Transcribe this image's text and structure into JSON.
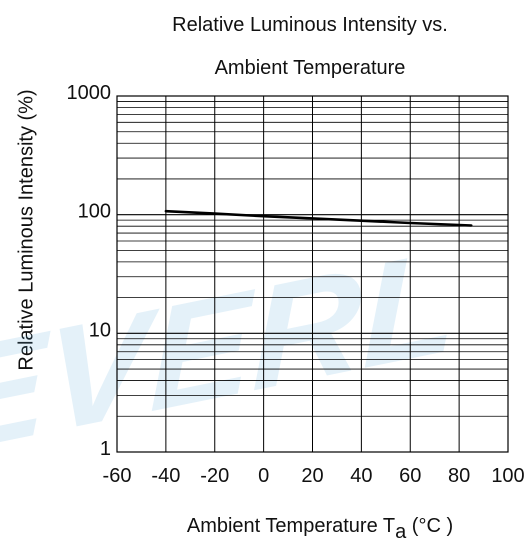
{
  "chart_data": {
    "type": "line",
    "title": "Relative Luminous Intensity vs.",
    "subtitle": "Ambient Temperature",
    "xlabel": "Ambient Temperature T",
    "xlabel_subscript": "a",
    "xlabel_unit": " (°C )",
    "ylabel": "Relative Luminous Intensity  (%)",
    "xlim": [
      -60,
      100
    ],
    "ylim": [
      1,
      1000
    ],
    "yscale": "log",
    "grid": true,
    "x_ticks": [
      "-60",
      "-40",
      "-20",
      "0",
      "20",
      "40",
      "60",
      "80",
      "100"
    ],
    "y_ticks": [
      "1",
      "10",
      "100",
      "1000"
    ],
    "series": [
      {
        "x": [
          -40,
          -20,
          0,
          20,
          40,
          60,
          85
        ],
        "y": [
          107,
          102,
          97,
          93,
          89,
          85,
          81
        ]
      }
    ]
  },
  "watermark": {
    "text": "EVERL",
    "color": "#5aa9d8"
  }
}
